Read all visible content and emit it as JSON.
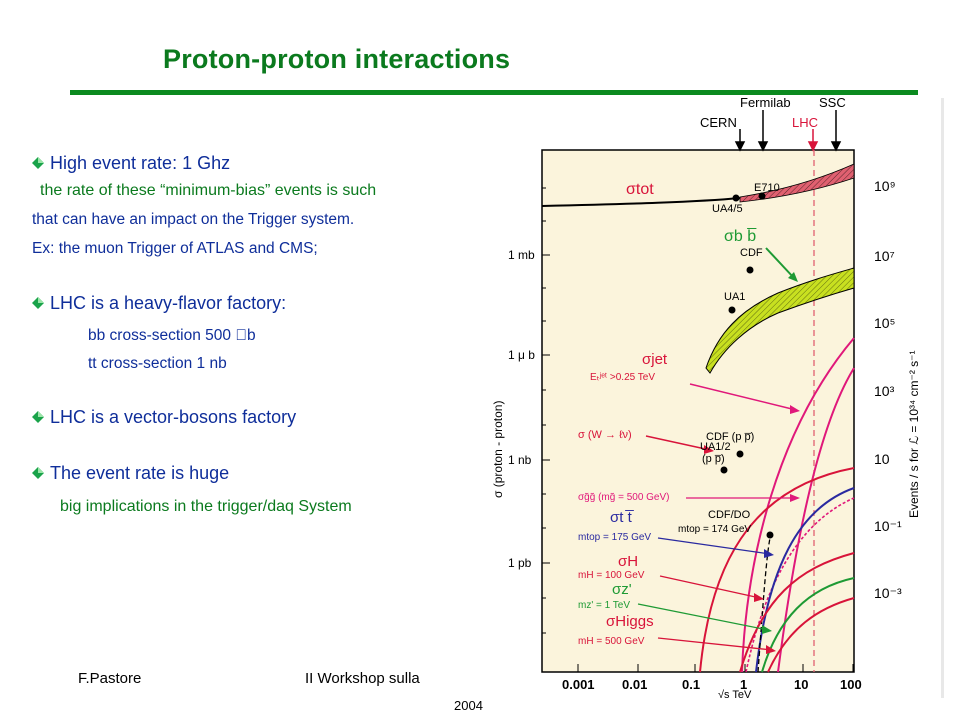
{
  "slide": {
    "title": "Proton-proton interactions",
    "bullets": [
      {
        "head": "High event rate: 1 Ghz",
        "sub": [
          "the rate of these “minimum-bias” events is such",
          "that can have an impact on the Trigger system.",
          "Ex:  the muon Trigger of ATLAS and CMS;"
        ]
      },
      {
        "head": "LHC is a heavy-flavor factory:",
        "sub": [
          "bb cross-section  500 \u0000b",
          "tt   cross-section    1  nb"
        ]
      },
      {
        "head": "LHC is a vector-bosons factory",
        "sub": []
      },
      {
        "head": "The event rate is huge",
        "sub": [
          "big implications in the trigger/daq System"
        ]
      }
    ],
    "footer": {
      "author": "F.Pastore",
      "workshop": "II Workshop sulla",
      "year": "2004"
    }
  },
  "figure": {
    "top_labels": {
      "cern": "CERN",
      "fermilab": "Fermilab",
      "lhc": "LHC",
      "ssc": "SSC"
    },
    "left_axis": {
      "title": "σ (proton - proton)",
      "ticks": [
        "1 mb",
        "1 μ b",
        "1 nb",
        "1 pb"
      ]
    },
    "right_axis": {
      "title": "Events / s  for  ℒ = 10³⁴ cm⁻² s⁻¹",
      "ticks": [
        "10⁹",
        "10⁷",
        "10⁵",
        "10³",
        "10",
        "10⁻¹",
        "10⁻³"
      ]
    },
    "x_axis": {
      "ticks": [
        "0.001",
        "0.01",
        "0.1",
        "1",
        "10",
        "100"
      ],
      "label": "√s   TeV"
    },
    "experiments": [
      "E710",
      "UA4/5",
      "CDF",
      "UA1",
      "CDF (p p̅)",
      "UA1/2",
      "(p p̅)",
      "CDF/DO"
    ],
    "curve_labels": [
      "σtot",
      "σb b̅",
      "σjet",
      "Eₜʲᵉᵗ >0.25 TeV",
      "σ (W → ℓν)",
      "σg̃g̃ (mg̃ = 500 GeV)",
      "σt t̅",
      "mtop = 175 GeV",
      "mtop = 174 GeV",
      "σH",
      "mH = 100 GeV",
      "σz'",
      "mz' = 1 TeV",
      "σHiggs",
      "mH = 500 GeV"
    ],
    "colors": {
      "black": "#000000",
      "red": "#d8143a",
      "magenta": "#e0187a",
      "green": "#1e9a34",
      "blue": "#2a2aa0",
      "yellow": "#c8e020",
      "plot_bg": "#fbf4dc"
    }
  }
}
